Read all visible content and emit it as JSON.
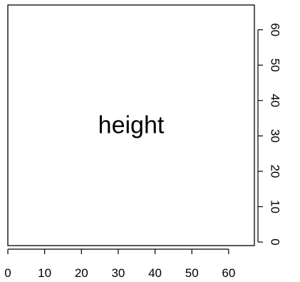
{
  "chart_data": {
    "type": "scatter",
    "title": "",
    "xlabel": "",
    "ylabel": "",
    "xlim": [
      0,
      67
    ],
    "ylim": [
      -1,
      67
    ],
    "x_ticks": [
      0,
      10,
      20,
      30,
      40,
      50,
      60
    ],
    "y_ticks": [
      0,
      10,
      20,
      30,
      40,
      50,
      60
    ],
    "x_tick_labels": [
      "0",
      "10",
      "20",
      "30",
      "40",
      "50",
      "60"
    ],
    "y_tick_labels": [
      "0",
      "10",
      "20",
      "30",
      "40",
      "50",
      "60"
    ],
    "annotation": {
      "text": "height",
      "x": 33.5,
      "y": 33
    },
    "series": [],
    "grid": false,
    "axis_sides": [
      "bottom",
      "right"
    ]
  }
}
